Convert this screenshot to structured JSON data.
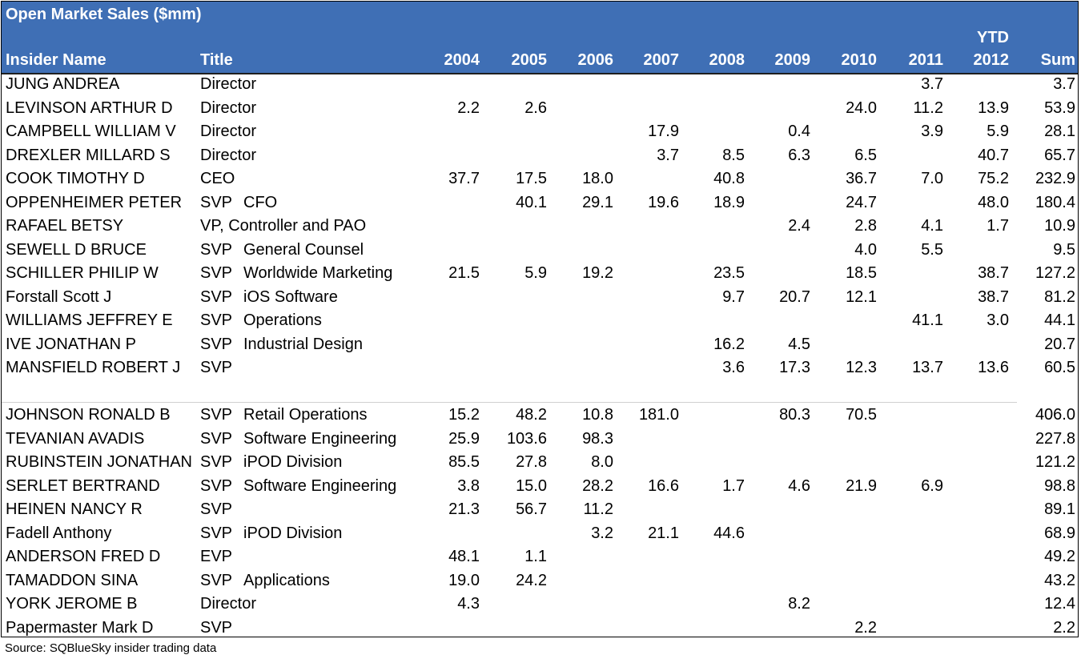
{
  "table": {
    "title": "Open Market Sales ($mm)",
    "columns": {
      "name": "Insider Name",
      "title": "Title",
      "years": [
        "2004",
        "2005",
        "2006",
        "2007",
        "2008",
        "2009",
        "2010",
        "2011",
        "2012"
      ],
      "ytd_label": "YTD",
      "sum": "Sum"
    },
    "rows": [
      {
        "name": "JUNG ANDREA",
        "role": "Director",
        "dept": "",
        "vals": [
          "",
          "",
          "",
          "",
          "",
          "",
          "",
          "3.7",
          ""
        ],
        "sum": "3.7"
      },
      {
        "name": "LEVINSON ARTHUR D",
        "role": "Director",
        "dept": "",
        "vals": [
          "2.2",
          "2.6",
          "",
          "",
          "",
          "",
          "24.0",
          "11.2",
          "13.9"
        ],
        "sum": "53.9"
      },
      {
        "name": "CAMPBELL WILLIAM V",
        "role": "Director",
        "dept": "",
        "vals": [
          "",
          "",
          "",
          "17.9",
          "",
          "0.4",
          "",
          "3.9",
          "5.9"
        ],
        "sum": "28.1"
      },
      {
        "name": "DREXLER MILLARD S",
        "role": "Director",
        "dept": "",
        "vals": [
          "",
          "",
          "",
          "3.7",
          "8.5",
          "6.3",
          "6.5",
          "",
          "40.7"
        ],
        "sum": "65.7"
      },
      {
        "name": "COOK TIMOTHY D",
        "role": "CEO",
        "dept": "",
        "vals": [
          "37.7",
          "17.5",
          "18.0",
          "",
          "40.8",
          "",
          "36.7",
          "7.0",
          "75.2"
        ],
        "sum": "232.9"
      },
      {
        "name": "OPPENHEIMER PETER",
        "role": "SVP",
        "dept": "CFO",
        "vals": [
          "",
          "40.1",
          "29.1",
          "19.6",
          "18.9",
          "",
          "24.7",
          "",
          "48.0"
        ],
        "sum": "180.4"
      },
      {
        "name": "RAFAEL BETSY",
        "role": "VP, Controller and PAO",
        "dept": "",
        "vals": [
          "",
          "",
          "",
          "",
          "",
          "2.4",
          "2.8",
          "4.1",
          "1.7"
        ],
        "sum": "10.9"
      },
      {
        "name": "SEWELL D BRUCE",
        "role": "SVP",
        "dept": "General Counsel",
        "vals": [
          "",
          "",
          "",
          "",
          "",
          "",
          "4.0",
          "5.5",
          ""
        ],
        "sum": "9.5"
      },
      {
        "name": "SCHILLER PHILIP W",
        "role": "SVP",
        "dept": "Worldwide Marketing",
        "vals": [
          "21.5",
          "5.9",
          "19.2",
          "",
          "23.5",
          "",
          "18.5",
          "",
          "38.7"
        ],
        "sum": "127.2"
      },
      {
        "name": "Forstall Scott J",
        "role": "SVP",
        "dept": "iOS Software",
        "vals": [
          "",
          "",
          "",
          "",
          "9.7",
          "20.7",
          "12.1",
          "",
          "38.7"
        ],
        "sum": "81.2"
      },
      {
        "name": "WILLIAMS JEFFREY E",
        "role": "SVP",
        "dept": "Operations",
        "vals": [
          "",
          "",
          "",
          "",
          "",
          "",
          "",
          "41.1",
          "3.0"
        ],
        "sum": "44.1"
      },
      {
        "name": "IVE JONATHAN P",
        "role": "SVP",
        "dept": "Industrial Design",
        "vals": [
          "",
          "",
          "",
          "",
          "16.2",
          "4.5",
          "",
          "",
          ""
        ],
        "sum": "20.7"
      },
      {
        "name": "MANSFIELD ROBERT J",
        "role": "SVP",
        "dept": "",
        "vals": [
          "",
          "",
          "",
          "",
          "3.6",
          "17.3",
          "12.3",
          "13.7",
          "13.6"
        ],
        "sum": "60.5"
      },
      {
        "name": "",
        "role": "",
        "dept": "",
        "vals": [
          "",
          "",
          "",
          "",
          "",
          "",
          "",
          "",
          ""
        ],
        "sum": ""
      },
      {
        "name": "JOHNSON RONALD B",
        "role": "SVP",
        "dept": "Retail Operations",
        "vals": [
          "15.2",
          "48.2",
          "10.8",
          "181.0",
          "",
          "80.3",
          "70.5",
          "",
          ""
        ],
        "sum": "406.0"
      },
      {
        "name": "TEVANIAN AVADIS",
        "role": "SVP",
        "dept": "Software Engineering",
        "vals": [
          "25.9",
          "103.6",
          "98.3",
          "",
          "",
          "",
          "",
          "",
          ""
        ],
        "sum": "227.8"
      },
      {
        "name": "RUBINSTEIN JONATHAN",
        "role": "SVP",
        "dept": "iPOD Division",
        "vals": [
          "85.5",
          "27.8",
          "8.0",
          "",
          "",
          "",
          "",
          "",
          ""
        ],
        "sum": "121.2"
      },
      {
        "name": "SERLET BERTRAND",
        "role": "SVP",
        "dept": "Software Engineering",
        "vals": [
          "3.8",
          "15.0",
          "28.2",
          "16.6",
          "1.7",
          "4.6",
          "21.9",
          "6.9",
          ""
        ],
        "sum": "98.8"
      },
      {
        "name": "HEINEN NANCY R",
        "role": "SVP",
        "dept": "",
        "vals": [
          "21.3",
          "56.7",
          "11.2",
          "",
          "",
          "",
          "",
          "",
          ""
        ],
        "sum": "89.1"
      },
      {
        "name": "Fadell Anthony",
        "role": "SVP",
        "dept": "iPOD Division",
        "vals": [
          "",
          "",
          "3.2",
          "21.1",
          "44.6",
          "",
          "",
          "",
          ""
        ],
        "sum": "68.9"
      },
      {
        "name": "ANDERSON FRED D",
        "role": "EVP",
        "dept": "",
        "vals": [
          "48.1",
          "1.1",
          "",
          "",
          "",
          "",
          "",
          "",
          ""
        ],
        "sum": "49.2"
      },
      {
        "name": "TAMADDON SINA",
        "role": "SVP",
        "dept": "Applications",
        "vals": [
          "19.0",
          "24.2",
          "",
          "",
          "",
          "",
          "",
          "",
          ""
        ],
        "sum": "43.2"
      },
      {
        "name": "YORK JEROME B",
        "role": "Director",
        "dept": "",
        "vals": [
          "4.3",
          "",
          "",
          "",
          "",
          "8.2",
          "",
          "",
          ""
        ],
        "sum": "12.4"
      },
      {
        "name": "Papermaster Mark D",
        "role": "SVP",
        "dept": "",
        "vals": [
          "",
          "",
          "",
          "",
          "",
          "",
          "2.2",
          "",
          ""
        ],
        "sum": "2.2"
      }
    ]
  },
  "source": "Source:  SQBlueSky insider trading data",
  "colors": {
    "header_bg": "#3f6fb5",
    "header_text": "#ffffff"
  },
  "chart_data": {
    "type": "table",
    "title": "Open Market Sales ($mm)",
    "columns": [
      "Insider Name",
      "Title",
      "2004",
      "2005",
      "2006",
      "2007",
      "2008",
      "2009",
      "2010",
      "2011",
      "YTD 2012",
      "Sum"
    ],
    "rows": [
      [
        "JUNG ANDREA",
        "Director",
        null,
        null,
        null,
        null,
        null,
        null,
        null,
        3.7,
        null,
        3.7
      ],
      [
        "LEVINSON ARTHUR D",
        "Director",
        2.2,
        2.6,
        null,
        null,
        null,
        null,
        24.0,
        11.2,
        13.9,
        53.9
      ],
      [
        "CAMPBELL WILLIAM V",
        "Director",
        null,
        null,
        null,
        17.9,
        null,
        0.4,
        null,
        3.9,
        5.9,
        28.1
      ],
      [
        "DREXLER MILLARD S",
        "Director",
        null,
        null,
        null,
        3.7,
        8.5,
        6.3,
        6.5,
        null,
        40.7,
        65.7
      ],
      [
        "COOK TIMOTHY D",
        "CEO",
        37.7,
        17.5,
        18.0,
        null,
        40.8,
        null,
        36.7,
        7.0,
        75.2,
        232.9
      ],
      [
        "OPPENHEIMER PETER",
        "SVP CFO",
        null,
        40.1,
        29.1,
        19.6,
        18.9,
        null,
        24.7,
        null,
        48.0,
        180.4
      ],
      [
        "RAFAEL BETSY",
        "VP, Controller and PAO",
        null,
        null,
        null,
        null,
        null,
        2.4,
        2.8,
        4.1,
        1.7,
        10.9
      ],
      [
        "SEWELL D BRUCE",
        "SVP General Counsel",
        null,
        null,
        null,
        null,
        null,
        null,
        4.0,
        5.5,
        null,
        9.5
      ],
      [
        "SCHILLER PHILIP W",
        "SVP Worldwide Marketing",
        21.5,
        5.9,
        19.2,
        null,
        23.5,
        null,
        18.5,
        null,
        38.7,
        127.2
      ],
      [
        "Forstall Scott J",
        "SVP iOS Software",
        null,
        null,
        null,
        null,
        9.7,
        20.7,
        12.1,
        null,
        38.7,
        81.2
      ],
      [
        "WILLIAMS JEFFREY E",
        "SVP Operations",
        null,
        null,
        null,
        null,
        null,
        null,
        null,
        41.1,
        3.0,
        44.1
      ],
      [
        "IVE JONATHAN P",
        "SVP Industrial Design",
        null,
        null,
        null,
        null,
        16.2,
        4.5,
        null,
        null,
        null,
        20.7
      ],
      [
        "MANSFIELD ROBERT J",
        "SVP",
        null,
        null,
        null,
        null,
        3.6,
        17.3,
        12.3,
        13.7,
        13.6,
        60.5
      ],
      [
        "JOHNSON RONALD B",
        "SVP Retail Operations",
        15.2,
        48.2,
        10.8,
        181.0,
        null,
        80.3,
        70.5,
        null,
        null,
        406.0
      ],
      [
        "TEVANIAN AVADIS",
        "SVP Software Engineering",
        25.9,
        103.6,
        98.3,
        null,
        null,
        null,
        null,
        null,
        null,
        227.8
      ],
      [
        "RUBINSTEIN JONATHAN",
        "SVP iPOD Division",
        85.5,
        27.8,
        8.0,
        null,
        null,
        null,
        null,
        null,
        null,
        121.2
      ],
      [
        "SERLET BERTRAND",
        "SVP Software Engineering",
        3.8,
        15.0,
        28.2,
        16.6,
        1.7,
        4.6,
        21.9,
        6.9,
        null,
        98.8
      ],
      [
        "HEINEN NANCY R",
        "SVP",
        21.3,
        56.7,
        11.2,
        null,
        null,
        null,
        null,
        null,
        null,
        89.1
      ],
      [
        "Fadell Anthony",
        "SVP iPOD Division",
        null,
        null,
        3.2,
        21.1,
        44.6,
        null,
        null,
        null,
        null,
        68.9
      ],
      [
        "ANDERSON FRED D",
        "EVP",
        48.1,
        1.1,
        null,
        null,
        null,
        null,
        null,
        null,
        null,
        49.2
      ],
      [
        "TAMADDON SINA",
        "SVP Applications",
        19.0,
        24.2,
        null,
        null,
        null,
        null,
        null,
        null,
        null,
        43.2
      ],
      [
        "YORK JEROME B",
        "Director",
        4.3,
        null,
        null,
        null,
        null,
        8.2,
        null,
        null,
        null,
        12.4
      ],
      [
        "Papermaster Mark D",
        "SVP",
        null,
        null,
        null,
        null,
        null,
        null,
        2.2,
        null,
        null,
        2.2
      ]
    ]
  }
}
